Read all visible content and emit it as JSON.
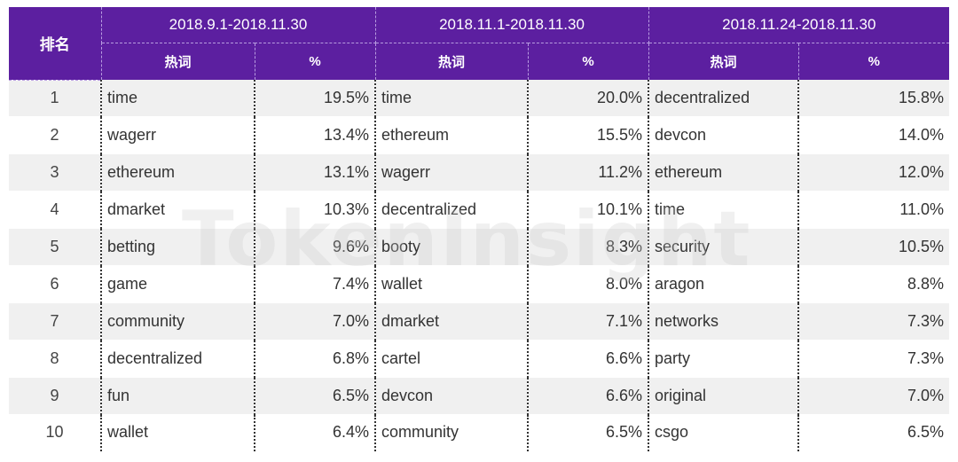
{
  "header": {
    "rank_label": "排名",
    "periods": [
      "2018.9.1-2018.11.30",
      "2018.11.1-2018.11.30",
      "2018.11.24-2018.11.30"
    ],
    "word_label": "热词",
    "pct_label": "%"
  },
  "rows": [
    {
      "rank": "1",
      "c": [
        [
          "time",
          "19.5%"
        ],
        [
          "time",
          "20.0%"
        ],
        [
          "decentralized",
          "15.8%"
        ]
      ]
    },
    {
      "rank": "2",
      "c": [
        [
          "wagerr",
          "13.4%"
        ],
        [
          "ethereum",
          "15.5%"
        ],
        [
          "devcon",
          "14.0%"
        ]
      ]
    },
    {
      "rank": "3",
      "c": [
        [
          "ethereum",
          "13.1%"
        ],
        [
          "wagerr",
          "11.2%"
        ],
        [
          "ethereum",
          "12.0%"
        ]
      ]
    },
    {
      "rank": "4",
      "c": [
        [
          "dmarket",
          "10.3%"
        ],
        [
          "decentralized",
          "10.1%"
        ],
        [
          "time",
          "11.0%"
        ]
      ]
    },
    {
      "rank": "5",
      "c": [
        [
          "betting",
          "9.6%"
        ],
        [
          "booty",
          "8.3%"
        ],
        [
          "security",
          "10.5%"
        ]
      ]
    },
    {
      "rank": "6",
      "c": [
        [
          "game",
          "7.4%"
        ],
        [
          "wallet",
          "8.0%"
        ],
        [
          "aragon",
          "8.8%"
        ]
      ]
    },
    {
      "rank": "7",
      "c": [
        [
          "community",
          "7.0%"
        ],
        [
          "dmarket",
          "7.1%"
        ],
        [
          "networks",
          "7.3%"
        ]
      ]
    },
    {
      "rank": "8",
      "c": [
        [
          "decentralized",
          "6.8%"
        ],
        [
          "cartel",
          "6.6%"
        ],
        [
          "party",
          "7.3%"
        ]
      ]
    },
    {
      "rank": "9",
      "c": [
        [
          "fun",
          "6.5%"
        ],
        [
          "devcon",
          "6.6%"
        ],
        [
          "original",
          "7.0%"
        ]
      ]
    },
    {
      "rank": "10",
      "c": [
        [
          "wallet",
          "6.4%"
        ],
        [
          "community",
          "6.5%"
        ],
        [
          "csgo",
          "6.5%"
        ]
      ]
    }
  ],
  "watermark": "TokenInsight",
  "colors": {
    "header_bg": "#5c1fa0",
    "stripe": "#f0f0f0"
  }
}
